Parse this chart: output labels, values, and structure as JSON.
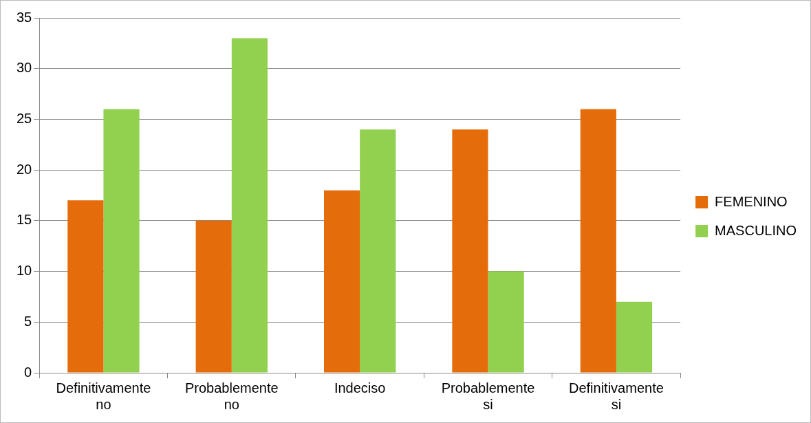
{
  "chart_data": {
    "type": "bar",
    "categories": [
      "Definitivamente no",
      "Probablemente no",
      "Indeciso",
      "Probablemente si",
      "Definitivamente si"
    ],
    "series": [
      {
        "name": "FEMENINO",
        "color": "#e46c0a",
        "values": [
          17,
          15,
          18,
          24,
          26
        ]
      },
      {
        "name": "MASCULINO",
        "color": "#92d050",
        "values": [
          26,
          33,
          24,
          10,
          7
        ]
      }
    ],
    "ylim": [
      0,
      35
    ],
    "yticks": [
      0,
      5,
      10,
      15,
      20,
      25,
      30,
      35
    ],
    "grid": "y",
    "legend": "right"
  }
}
